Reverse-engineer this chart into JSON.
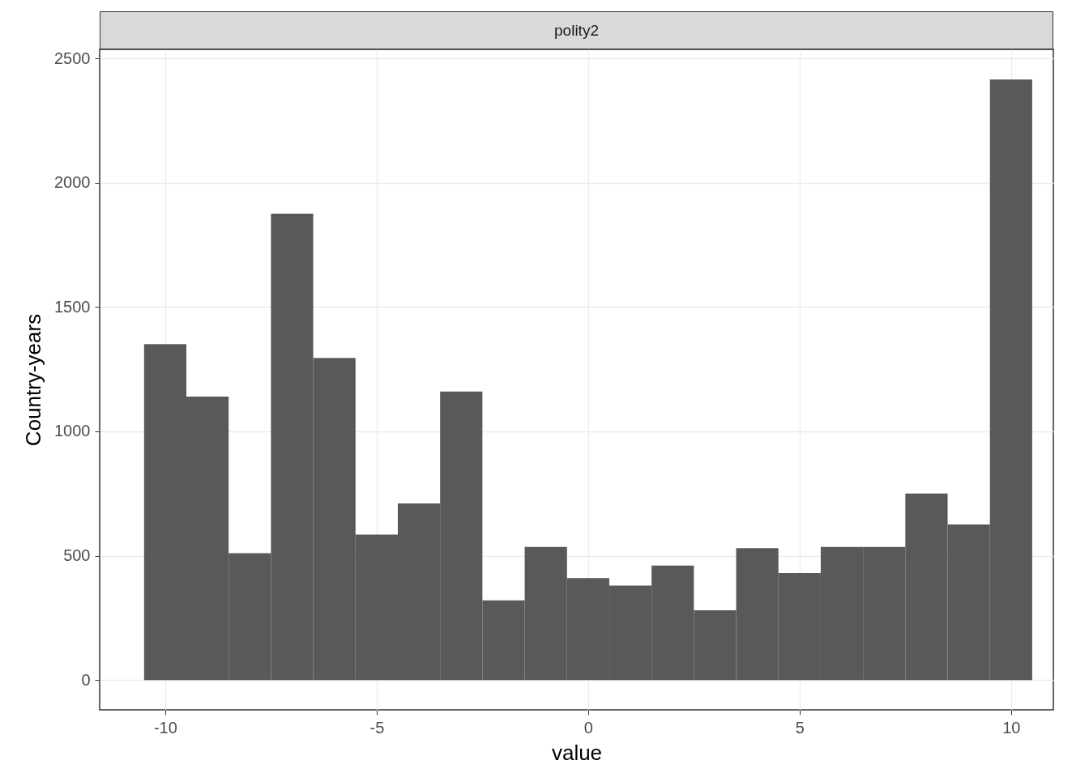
{
  "chart_data": {
    "type": "histogram",
    "title": "polity2",
    "xlabel": "value",
    "ylabel": "Country-years",
    "bins": [
      -10.5,
      -9.5,
      -8.5,
      -7.5,
      -6.5,
      -5.5,
      -4.5,
      -3.5,
      -2.5,
      -1.5,
      -0.5,
      0.5,
      1.5,
      2.5,
      3.5,
      4.5,
      5.5,
      6.5,
      7.5,
      8.5,
      9.5,
      10.5
    ],
    "values": [
      1350,
      1140,
      510,
      1875,
      1295,
      585,
      710,
      1160,
      320,
      535,
      410,
      380,
      460,
      280,
      530,
      430,
      535,
      535,
      750,
      625,
      2415
    ],
    "color": "#595959",
    "xlim": [
      -11.55,
      11
    ],
    "xticks": [
      -10,
      -5,
      0,
      5,
      10
    ],
    "ylim": [
      -120,
      2536
    ],
    "yticks": [
      0,
      500,
      1000,
      1500,
      2000,
      2500
    ],
    "grid": true
  }
}
